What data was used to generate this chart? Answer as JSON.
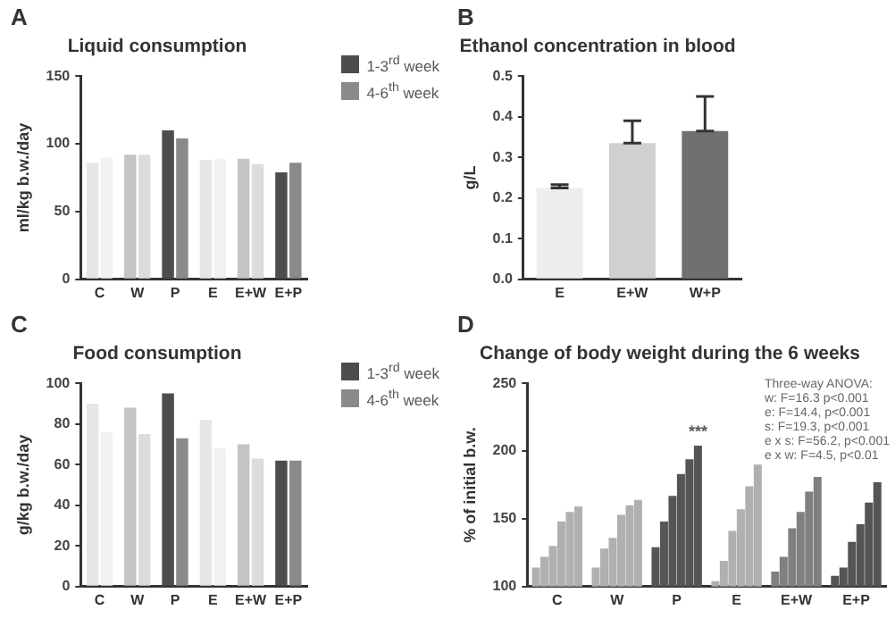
{
  "chart_data": [
    {
      "type": "bar",
      "title": "Liquid consumption",
      "ylabel": "ml/kg b.w./day",
      "categories": [
        "C",
        "W",
        "P",
        "E",
        "E+W",
        "E+P"
      ],
      "series": [
        {
          "name": "1-3$^{rd}$ week",
          "colors": [
            "#e6e6e6",
            "#c4c4c4",
            "#4d4d4d",
            "#e6e6e6",
            "#c4c4c4",
            "#4d4d4d"
          ],
          "values": [
            86,
            92,
            110,
            88,
            89,
            79
          ]
        },
        {
          "name": "4-6$^{th}$ week",
          "colors": [
            "#f2f2f2",
            "#dcdcdc",
            "#8a8a8a",
            "#f2f2f2",
            "#dcdcdc",
            "#8a8a8a"
          ],
          "values": [
            90,
            92,
            104,
            89,
            85,
            86
          ]
        }
      ],
      "ylim": [
        0,
        150
      ],
      "yticks": [
        0,
        50,
        100,
        150
      ],
      "grid": false,
      "legend": "top right",
      "annotations": [
        "A"
      ]
    },
    {
      "type": "bar",
      "title": "Ethanol concentration in blood",
      "ylabel": "g/L",
      "categories": [
        "E",
        "E+W",
        "W+P"
      ],
      "series": [
        {
          "colors": [
            "#eeeeee",
            "#d0d0d0",
            "#707070"
          ],
          "values": [
            0.225,
            0.335,
            0.365
          ],
          "errors": [
            [
              0.225,
              0.233
            ],
            [
              0.335,
              0.39
            ],
            [
              0.365,
              0.45
            ]
          ]
        }
      ],
      "ylim": [
        0,
        0.5
      ],
      "yticks": [
        {
          "value": 0,
          "label": "0.0"
        },
        0.1,
        0.2,
        0.3,
        0.4,
        0.5
      ],
      "grid": false,
      "annotations": [
        "B"
      ]
    },
    {
      "type": "bar",
      "title": "Food consumption",
      "ylabel": "g/kg b.w./day",
      "categories": [
        "C",
        "W",
        "P",
        "E",
        "E+W",
        "E+P"
      ],
      "series": [
        {
          "name": "1-3$^{rd}$ week",
          "colors": [
            "#e6e6e6",
            "#c4c4c4",
            "#4d4d4d",
            "#e6e6e6",
            "#c4c4c4",
            "#4d4d4d"
          ],
          "values": [
            90,
            88,
            95,
            82,
            70,
            62
          ]
        },
        {
          "name": "4-6$^{th}$ week",
          "colors": [
            "#f2f2f2",
            "#dcdcdc",
            "#8a8a8a",
            "#f2f2f2",
            "#dcdcdc",
            "#8a8a8a"
          ],
          "values": [
            76,
            75,
            73,
            68,
            63,
            62
          ]
        }
      ],
      "ylim": [
        0,
        100
      ],
      "yticks": [
        0,
        20,
        40,
        60,
        80,
        100
      ],
      "grid": false,
      "legend": "top right",
      "annotations": [
        "C"
      ]
    },
    {
      "type": "bar",
      "title": "Change of body weight during the 6 weeks",
      "ylabel": "% of initial b.w.",
      "categories": [
        "C",
        "W",
        "P",
        "E",
        "E+W",
        "E+P"
      ],
      "series": [
        {
          "colors": [
            "#b0b0b0",
            "#b0b0b0",
            "#555555",
            "#b0b0b0",
            "#808080",
            "#555555"
          ],
          "values": [
            114,
            114,
            129,
            104,
            111,
            108
          ]
        },
        {
          "colors": [
            "#b0b0b0",
            "#b0b0b0",
            "#555555",
            "#b0b0b0",
            "#808080",
            "#555555"
          ],
          "values": [
            122,
            128,
            148,
            119,
            122,
            114
          ]
        },
        {
          "colors": [
            "#b0b0b0",
            "#b0b0b0",
            "#555555",
            "#b0b0b0",
            "#808080",
            "#555555"
          ],
          "values": [
            130,
            136,
            167,
            141,
            143,
            133
          ]
        },
        {
          "colors": [
            "#b0b0b0",
            "#b0b0b0",
            "#555555",
            "#b0b0b0",
            "#808080",
            "#555555"
          ],
          "values": [
            148,
            153,
            183,
            157,
            155,
            146
          ]
        },
        {
          "colors": [
            "#b0b0b0",
            "#b0b0b0",
            "#555555",
            "#b0b0b0",
            "#808080",
            "#555555"
          ],
          "values": [
            155,
            160,
            194,
            174,
            170,
            162
          ]
        },
        {
          "colors": [
            "#b0b0b0",
            "#b0b0b0",
            "#555555",
            "#b0b0b0",
            "#808080",
            "#555555"
          ],
          "values": [
            159,
            164,
            204,
            190,
            181,
            177
          ],
          "value_labels": [
            null,
            null,
            "***",
            null,
            null,
            null
          ]
        }
      ],
      "ylim": [
        100,
        250
      ],
      "yticks": [
        100,
        150,
        200,
        250
      ],
      "grid": false,
      "annotations": [
        "D",
        "Three-way ANOVA:",
        "w: F=16.3 p<0.001",
        "e: F=14.4, p<0.001",
        "s: F=19.3, p<0.001",
        "e x s: F=56.2, p<0.001",
        "e x w: F=4.5, p<0.01"
      ]
    }
  ]
}
